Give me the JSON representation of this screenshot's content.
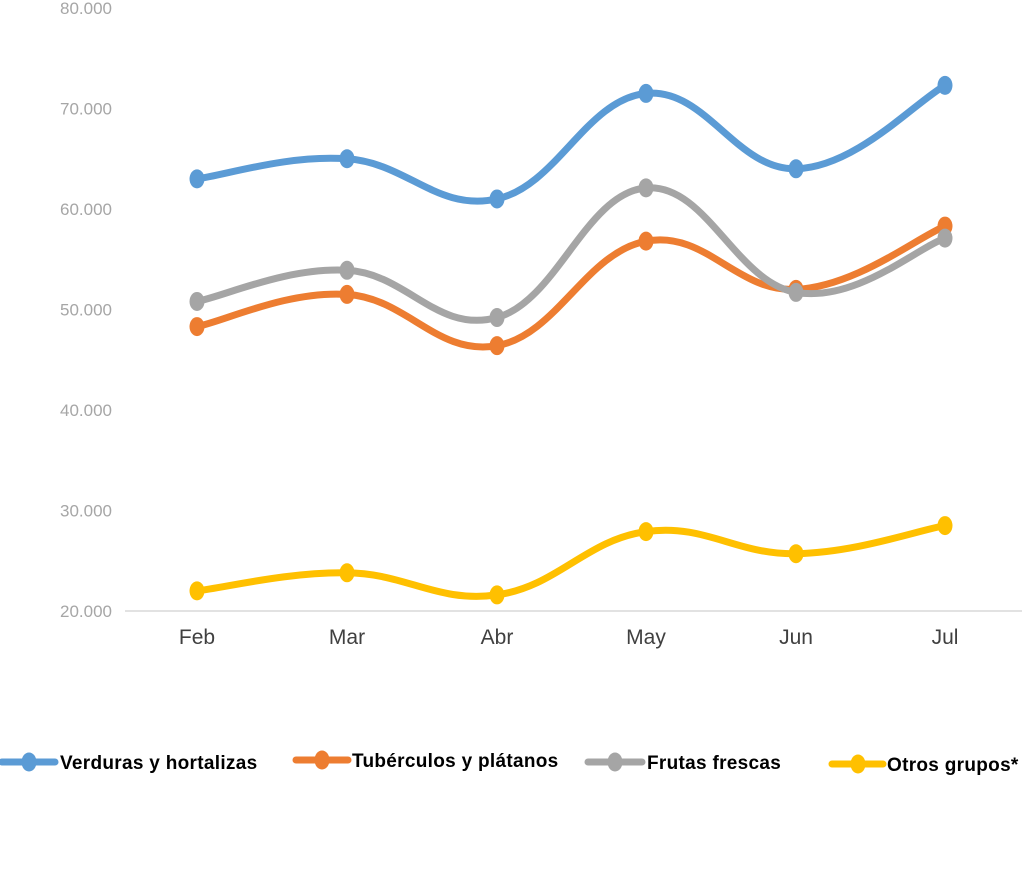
{
  "chart_data": {
    "type": "line",
    "title": "",
    "xlabel": "",
    "ylabel": "",
    "categories": [
      "Feb",
      "Mar",
      "Abr",
      "May",
      "Jun",
      "Jul"
    ],
    "ylim": [
      20000,
      80000
    ],
    "yticks": [
      20000,
      30000,
      40000,
      50000,
      60000,
      70000,
      80000
    ],
    "ytick_labels": [
      "20.000",
      "30.000",
      "40.000",
      "50.000",
      "60.000",
      "70.000",
      "80.000"
    ],
    "grid": false,
    "legend_position": "bottom",
    "smooth": true,
    "series": [
      {
        "name": "Verduras y hortalizas",
        "color": "#5b9bd5",
        "values": [
          63000,
          65000,
          61000,
          71500,
          64000,
          72300
        ]
      },
      {
        "name": "Tubérculos y plátanos",
        "color": "#ed7d31",
        "values": [
          48300,
          51500,
          46400,
          56800,
          52000,
          58300
        ]
      },
      {
        "name": "Frutas frescas",
        "color": "#a5a5a5",
        "values": [
          50800,
          53900,
          49200,
          62100,
          51700,
          57100
        ]
      },
      {
        "name": "Otros grupos*",
        "color": "#ffc000",
        "values": [
          22000,
          23800,
          21600,
          27900,
          25700,
          28500
        ]
      }
    ]
  }
}
